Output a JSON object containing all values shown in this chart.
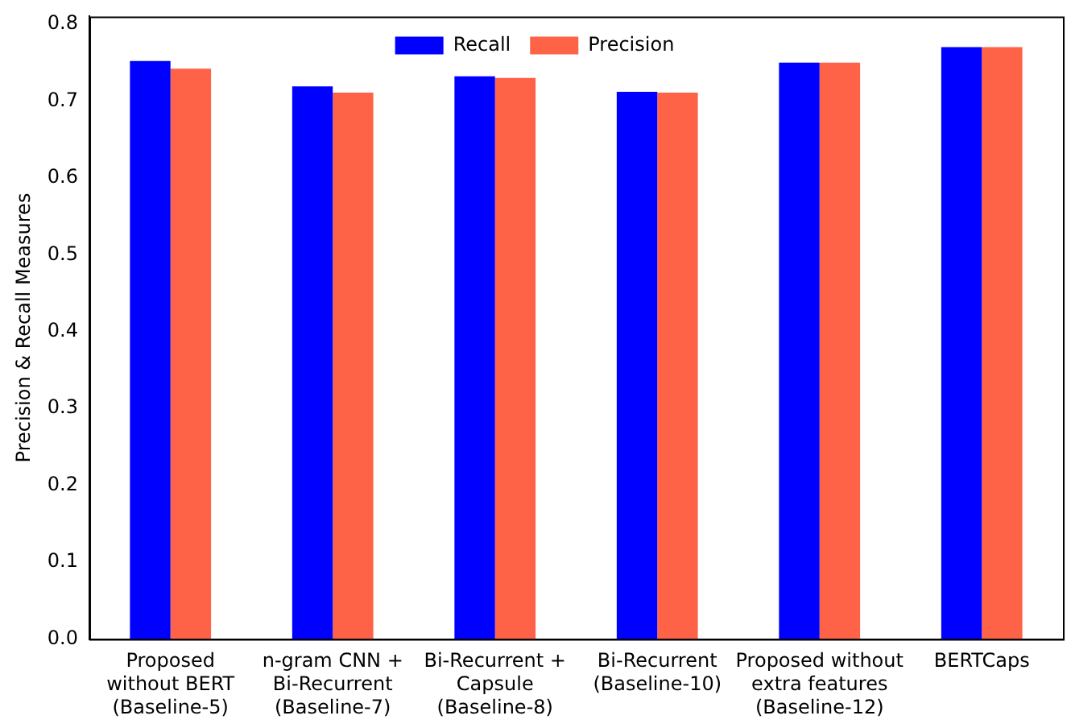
{
  "chart_data": {
    "type": "bar",
    "ylabel": "Precision & Recall Measures",
    "categories": [
      "Proposed\nwithout BERT\n(Baseline-5)",
      "n-gram CNN +\nBi-Recurrent\n(Baseline-7)",
      "Bi-Recurrent +\nCapsule\n(Baseline-8)",
      "Bi-Recurrent\n(Baseline-10)",
      "Proposed without\nextra features\n(Baseline-12)",
      "BERTCaps"
    ],
    "series": [
      {
        "name": "Recall",
        "color": "#0000ff",
        "values": [
          0.752,
          0.719,
          0.732,
          0.712,
          0.75,
          0.77
        ]
      },
      {
        "name": "Precision",
        "color": "#ff6347",
        "values": [
          0.742,
          0.711,
          0.73,
          0.711,
          0.75,
          0.77
        ]
      }
    ],
    "ylim": [
      0,
      0.81
    ],
    "yticks": [
      {
        "value": 0,
        "label": "0.0"
      },
      0.1,
      0.2,
      0.3,
      0.4,
      0.5,
      0.6,
      0.7,
      0.8
    ],
    "grid": false,
    "legend": "top"
  }
}
